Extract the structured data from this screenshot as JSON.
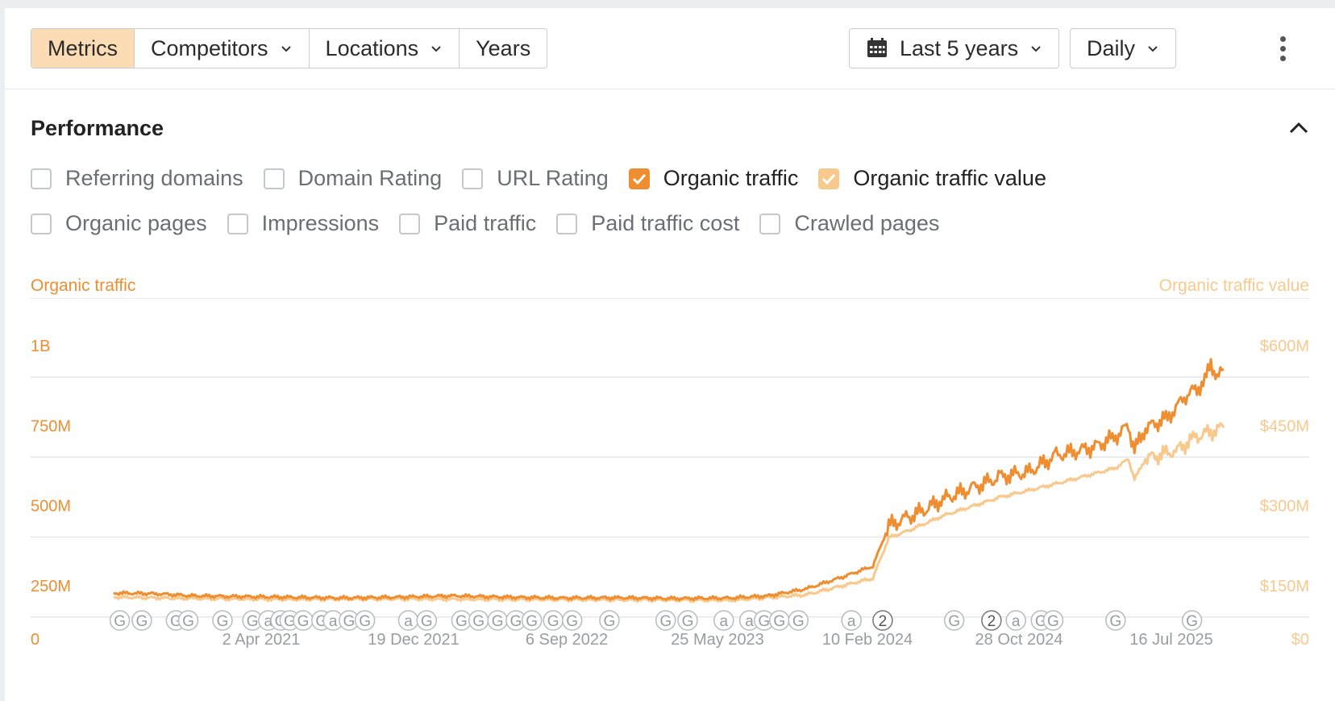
{
  "toolbar": {
    "tabs": [
      {
        "label": "Metrics",
        "active": true,
        "dropdown": false
      },
      {
        "label": "Competitors",
        "active": false,
        "dropdown": true
      },
      {
        "label": "Locations",
        "active": false,
        "dropdown": true
      },
      {
        "label": "Years",
        "active": false,
        "dropdown": false
      }
    ],
    "date_range": "Last 5 years",
    "granularity": "Daily",
    "icons": {
      "calendar": "calendar-icon",
      "more": "more-vertical-icon",
      "caret": "chevron-down-icon"
    }
  },
  "section": {
    "title": "Performance",
    "collapse_icon": "chevron-up-icon",
    "checkboxes_row1": [
      {
        "label": "Referring domains",
        "checked": false
      },
      {
        "label": "Domain Rating",
        "checked": false
      },
      {
        "label": "URL Rating",
        "checked": false
      },
      {
        "label": "Organic traffic",
        "checked": true,
        "color": "#ef8d31"
      },
      {
        "label": "Organic traffic value",
        "checked": true,
        "color": "#f8c98d"
      }
    ],
    "checkboxes_row2": [
      {
        "label": "Organic pages",
        "checked": false
      },
      {
        "label": "Impressions",
        "checked": false
      },
      {
        "label": "Paid traffic",
        "checked": false
      },
      {
        "label": "Paid traffic cost",
        "checked": false
      },
      {
        "label": "Crawled pages",
        "checked": false
      }
    ]
  },
  "colors": {
    "primary": "#ef8d31",
    "secondary": "#f8c98d",
    "grid": "#e6e7ea",
    "tick": "#9a9ca1"
  },
  "chart_data": {
    "type": "line",
    "left_axis_title": "Organic traffic",
    "right_axis_title": "Organic traffic value",
    "left_ticks": [
      "0",
      "250M",
      "500M",
      "750M",
      "1B"
    ],
    "right_ticks": [
      "$0",
      "$150M",
      "$300M",
      "$450M",
      "$600M"
    ],
    "left_ylim": [
      0,
      1000000000
    ],
    "right_ylim": [
      0,
      600000000
    ],
    "x_tick_labels": [
      "2 Apr 2021",
      "19 Dec 2021",
      "6 Sep 2022",
      "25 May 2023",
      "10 Feb 2024",
      "28 Oct 2024",
      "16 Jul 2025"
    ],
    "x_range": [
      "2020-07-26",
      "2025-07-16"
    ],
    "grid": true,
    "series": [
      {
        "name": "Organic traffic",
        "axis": "left",
        "color": "#ef8d31",
        "points": [
          [
            "2020-07-26",
            170000000
          ],
          [
            "2020-10-01",
            168000000
          ],
          [
            "2020-12-01",
            160000000
          ],
          [
            "2021-02-01",
            158000000
          ],
          [
            "2021-05-01",
            155000000
          ],
          [
            "2021-08-01",
            152000000
          ],
          [
            "2021-11-01",
            155000000
          ],
          [
            "2022-02-01",
            160000000
          ],
          [
            "2022-05-01",
            155000000
          ],
          [
            "2022-08-01",
            152000000
          ],
          [
            "2022-11-01",
            153000000
          ],
          [
            "2023-02-01",
            150000000
          ],
          [
            "2023-05-01",
            152000000
          ],
          [
            "2023-07-01",
            160000000
          ],
          [
            "2023-09-01",
            185000000
          ],
          [
            "2023-11-01",
            230000000
          ],
          [
            "2023-12-20",
            270000000
          ],
          [
            "2024-01-15",
            420000000
          ],
          [
            "2024-02-15",
            450000000
          ],
          [
            "2024-03-15",
            480000000
          ],
          [
            "2024-04-15",
            520000000
          ],
          [
            "2024-06-01",
            560000000
          ],
          [
            "2024-07-15",
            600000000
          ],
          [
            "2024-09-01",
            620000000
          ],
          [
            "2024-10-15",
            680000000
          ],
          [
            "2024-12-15",
            710000000
          ],
          [
            "2025-01-20",
            750000000
          ],
          [
            "2025-02-10",
            790000000
          ],
          [
            "2025-02-20",
            700000000
          ],
          [
            "2025-03-10",
            780000000
          ],
          [
            "2025-04-15",
            820000000
          ],
          [
            "2025-05-15",
            900000000
          ],
          [
            "2025-06-15",
            950000000
          ],
          [
            "2025-06-25",
            1030000000
          ],
          [
            "2025-07-05",
            960000000
          ],
          [
            "2025-07-16",
            1000000000
          ]
        ]
      },
      {
        "name": "Organic traffic value",
        "axis": "right",
        "color": "#f8c98d",
        "points": [
          [
            "2020-07-26",
            93000000
          ],
          [
            "2020-12-01",
            90000000
          ],
          [
            "2021-05-01",
            88000000
          ],
          [
            "2021-11-01",
            89000000
          ],
          [
            "2022-05-01",
            88000000
          ],
          [
            "2022-11-01",
            87000000
          ],
          [
            "2023-05-01",
            86000000
          ],
          [
            "2023-09-01",
            98000000
          ],
          [
            "2023-12-20",
            135000000
          ],
          [
            "2024-01-15",
            225000000
          ],
          [
            "2024-02-15",
            240000000
          ],
          [
            "2024-04-15",
            275000000
          ],
          [
            "2024-07-15",
            315000000
          ],
          [
            "2024-10-15",
            345000000
          ],
          [
            "2025-01-20",
            380000000
          ],
          [
            "2025-02-10",
            400000000
          ],
          [
            "2025-02-20",
            355000000
          ],
          [
            "2025-03-10",
            400000000
          ],
          [
            "2025-05-01",
            420000000
          ],
          [
            "2025-06-01",
            450000000
          ],
          [
            "2025-07-16",
            470000000
          ]
        ]
      }
    ],
    "annotations": [
      {
        "date": "2020-08-05",
        "label": "G"
      },
      {
        "date": "2020-09-10",
        "label": "G"
      },
      {
        "date": "2020-11-05",
        "label": "G"
      },
      {
        "date": "2020-11-25",
        "label": "G"
      },
      {
        "date": "2021-01-20",
        "label": "G"
      },
      {
        "date": "2021-03-10",
        "label": "G"
      },
      {
        "date": "2021-04-05",
        "label": "a"
      },
      {
        "date": "2021-04-25",
        "label": "G"
      },
      {
        "date": "2021-05-10",
        "label": "G"
      },
      {
        "date": "2021-06-01",
        "label": "G"
      },
      {
        "date": "2021-07-01",
        "label": "G"
      },
      {
        "date": "2021-07-20",
        "label": "a"
      },
      {
        "date": "2021-08-15",
        "label": "G"
      },
      {
        "date": "2021-09-10",
        "label": "G"
      },
      {
        "date": "2021-11-20",
        "label": "a"
      },
      {
        "date": "2021-12-20",
        "label": "G"
      },
      {
        "date": "2022-02-15",
        "label": "G"
      },
      {
        "date": "2022-03-15",
        "label": "G"
      },
      {
        "date": "2022-04-15",
        "label": "G"
      },
      {
        "date": "2022-05-15",
        "label": "G"
      },
      {
        "date": "2022-06-10",
        "label": "G"
      },
      {
        "date": "2022-07-15",
        "label": "G"
      },
      {
        "date": "2022-08-15",
        "label": "G"
      },
      {
        "date": "2022-10-15",
        "label": "G"
      },
      {
        "date": "2023-01-15",
        "label": "G"
      },
      {
        "date": "2023-02-20",
        "label": "G"
      },
      {
        "date": "2023-04-20",
        "label": "a"
      },
      {
        "date": "2023-06-01",
        "label": "a"
      },
      {
        "date": "2023-06-25",
        "label": "G"
      },
      {
        "date": "2023-07-20",
        "label": "G"
      },
      {
        "date": "2023-08-20",
        "label": "G"
      },
      {
        "date": "2023-11-15",
        "label": "a"
      },
      {
        "date": "2024-01-05",
        "label": "2"
      },
      {
        "date": "2024-05-01",
        "label": "G"
      },
      {
        "date": "2024-07-01",
        "label": "2"
      },
      {
        "date": "2024-08-10",
        "label": "a"
      },
      {
        "date": "2024-09-20",
        "label": "G"
      },
      {
        "date": "2024-10-10",
        "label": "G"
      },
      {
        "date": "2025-01-20",
        "label": "G"
      },
      {
        "date": "2025-05-25",
        "label": "G"
      }
    ]
  }
}
